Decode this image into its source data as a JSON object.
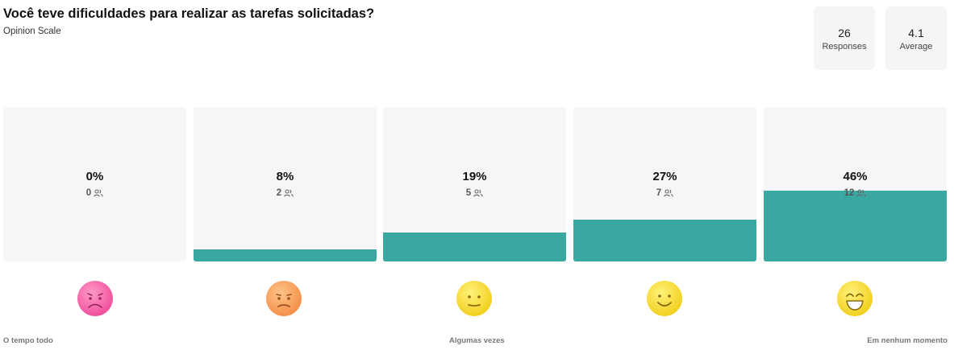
{
  "question": {
    "title": "Você teve dificuldades para realizar as tarefas solicitadas?",
    "type": "Opinion Scale"
  },
  "stats": {
    "responses": {
      "value": "26",
      "label": "Responses"
    },
    "average": {
      "value": "4.1",
      "label": "Average"
    }
  },
  "colors": {
    "bar_fill": "#38a8a0",
    "bar_background": "#f6f6f8"
  },
  "options": [
    {
      "percent_label": "0%",
      "count_label": "0",
      "percent": 0,
      "emoji": "pink-sad-face-icon"
    },
    {
      "percent_label": "8%",
      "count_label": "2",
      "percent": 8,
      "emoji": "orange-frown-face-icon"
    },
    {
      "percent_label": "19%",
      "count_label": "5",
      "percent": 19,
      "emoji": "yellow-neutral-face-icon"
    },
    {
      "percent_label": "27%",
      "count_label": "7",
      "percent": 27,
      "emoji": "yellow-smile-face-icon"
    },
    {
      "percent_label": "46%",
      "count_label": "12",
      "percent": 46,
      "emoji": "yellow-grin-face-icon"
    }
  ],
  "scale_labels": {
    "left": "O tempo todo",
    "middle": "Algumas vezes",
    "right": "Em nenhum momento"
  }
}
